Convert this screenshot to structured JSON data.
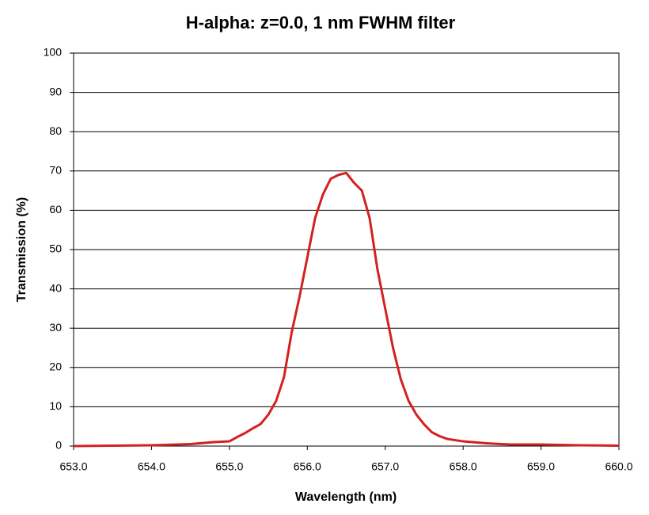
{
  "chart_data": {
    "type": "line",
    "title": "H-alpha: z=0.0, 1 nm FWHM filter",
    "x_label": "Wavelength (nm)",
    "y_label": "Transmission (%)",
    "x": [
      653.0,
      653.5,
      654.0,
      654.5,
      654.8,
      655.0,
      655.1,
      655.2,
      655.3,
      655.4,
      655.5,
      655.6,
      655.7,
      655.8,
      655.9,
      656.0,
      656.1,
      656.2,
      656.3,
      656.4,
      656.5,
      656.6,
      656.7,
      656.8,
      656.9,
      657.0,
      657.1,
      657.2,
      657.3,
      657.4,
      657.5,
      657.6,
      657.7,
      657.8,
      658.0,
      658.3,
      658.6,
      659.0,
      659.5,
      660.0
    ],
    "series": [
      {
        "name": "Transmission",
        "color": "#d42020",
        "values": [
          0,
          0.1,
          0.2,
          0.5,
          1.0,
          1.2,
          2.3,
          3.3,
          4.5,
          5.6,
          8,
          11.5,
          17.5,
          29,
          38,
          48,
          58,
          64,
          68,
          69,
          69.5,
          67,
          65,
          58,
          45,
          35,
          25,
          17,
          11.5,
          8,
          5.5,
          3.5,
          2.5,
          1.8,
          1.2,
          0.7,
          0.4,
          0.4,
          0.2,
          0.1
        ]
      }
    ],
    "xlim": [
      653,
      660
    ],
    "xticks": [
      {
        "value": 653,
        "label": "653.0"
      },
      {
        "value": 654,
        "label": "654.0"
      },
      {
        "value": 655,
        "label": "655.0"
      },
      {
        "value": 656,
        "label": "656.0"
      },
      {
        "value": 657,
        "label": "657.0"
      },
      {
        "value": 658,
        "label": "658.0"
      },
      {
        "value": 659,
        "label": "659.0"
      },
      {
        "value": 660,
        "label": "660.0"
      }
    ],
    "ylim": [
      0,
      100
    ],
    "yticks": [
      0,
      10,
      20,
      30,
      40,
      50,
      60,
      70,
      80,
      90,
      100
    ],
    "grid": true
  }
}
